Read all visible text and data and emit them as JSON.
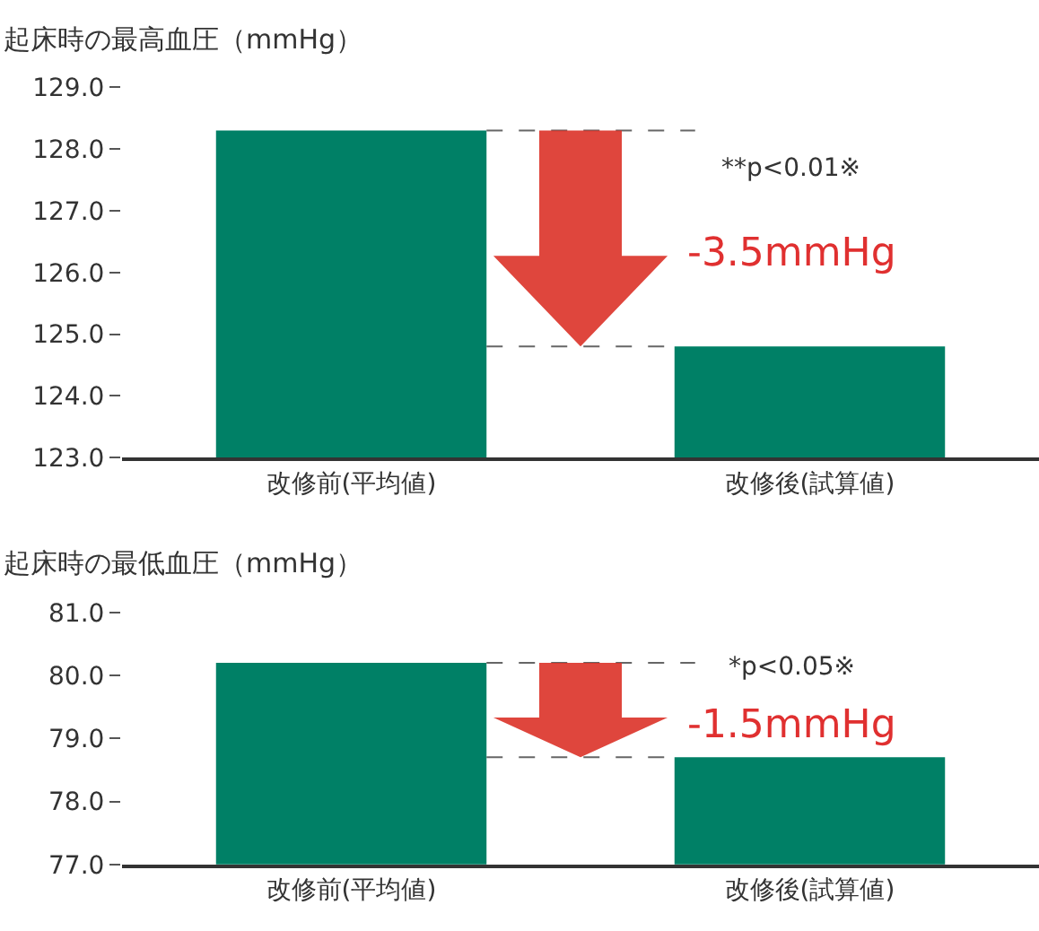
{
  "chart_data": [
    {
      "type": "bar",
      "title": "起床時の最高血圧（mmHg）",
      "categories": [
        "改修前(平均値)",
        "改修後(試算値)"
      ],
      "values": [
        128.3,
        124.8
      ],
      "color": "#008066",
      "ylim": [
        123,
        129
      ],
      "yticks": [
        {
          "value": 123,
          "label": "123.0"
        },
        {
          "value": 124,
          "label": "124.0"
        },
        {
          "value": 125,
          "label": "125.0"
        },
        {
          "value": 126,
          "label": "126.0"
        },
        {
          "value": 127,
          "label": "127.0"
        },
        {
          "value": 128,
          "label": "128.0"
        },
        {
          "value": 129,
          "label": "129.0"
        }
      ],
      "annotations": [
        "**p<0.01※",
        {
          "text": "-3.5mmHg",
          "y": 124.8
        }
      ],
      "ref_lines": [
        {
          "axis": "y",
          "value": 128.3,
          "label": null,
          "line_style": "dashed",
          "color": "#666666"
        },
        {
          "axis": "y",
          "value": 124.8,
          "label": null,
          "line_style": "dashed",
          "color": "#666666"
        }
      ]
    },
    {
      "type": "bar",
      "title": "起床時の最低血圧（mmHg）",
      "categories": [
        "改修前(平均値)",
        "改修後(試算値)"
      ],
      "values": [
        80.2,
        78.7
      ],
      "color": "#008066",
      "ylim": [
        77,
        81
      ],
      "yticks": [
        {
          "value": 77,
          "label": "77.0"
        },
        {
          "value": 78,
          "label": "78.0"
        },
        {
          "value": 79,
          "label": "79.0"
        },
        {
          "value": 80,
          "label": "80.0"
        },
        {
          "value": 81,
          "label": "81.0"
        }
      ],
      "annotations": [
        "*p<0.05※",
        {
          "text": "-1.5mmHg",
          "y": 78.7
        }
      ],
      "ref_lines": [
        {
          "axis": "y",
          "value": 80.2,
          "label": null,
          "line_style": "dashed",
          "color": "#666666"
        },
        {
          "axis": "y",
          "value": 78.7,
          "label": null,
          "line_style": "dashed",
          "color": "#666666"
        }
      ]
    }
  ]
}
